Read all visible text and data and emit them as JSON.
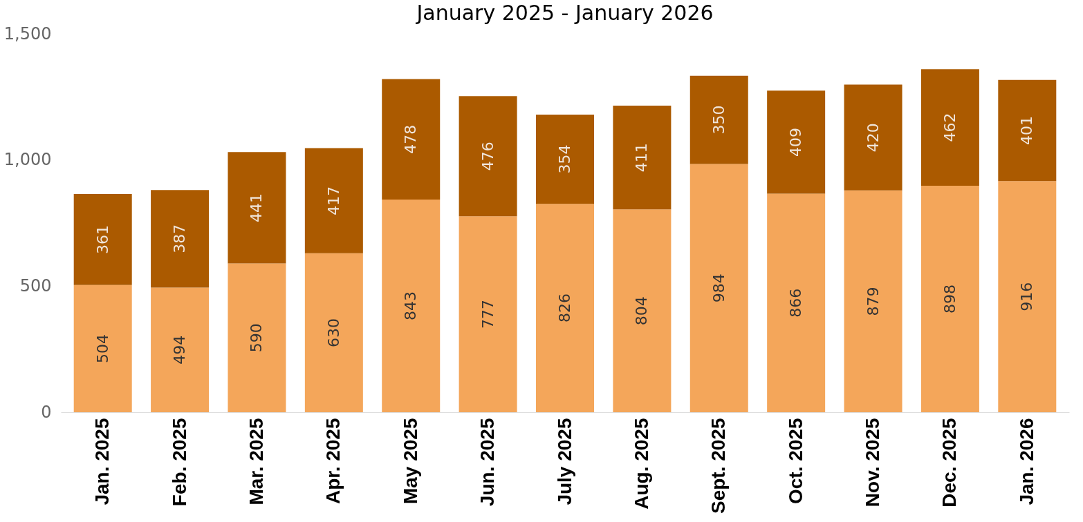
{
  "chart_data": {
    "type": "bar",
    "title": "January 2025 - January 2026",
    "categories": [
      "Jan. 2025",
      "Feb. 2025",
      "Mar. 2025",
      "Apr. 2025",
      "May 2025",
      "Jun. 2025",
      "July 2025",
      "Aug. 2025",
      "Sept. 2025",
      "Oct. 2025",
      "Nov. 2025",
      "Dec. 2025",
      "Jan. 2026"
    ],
    "stacked": true,
    "series": [
      {
        "color": "#f4a65a",
        "values": [
          504,
          494,
          590,
          630,
          843,
          777,
          826,
          804,
          984,
          866,
          879,
          898,
          916
        ]
      },
      {
        "color": "#ab5a00",
        "values": [
          361,
          387,
          441,
          417,
          478,
          476,
          354,
          411,
          350,
          409,
          420,
          462,
          401
        ]
      }
    ],
    "ylim": [
      0,
      1500
    ],
    "yticks": [
      0,
      500,
      {
        "value": 1000,
        "label": "1,000"
      },
      {
        "value": 1500,
        "label": "1,500"
      }
    ],
    "data_labels": true,
    "grid": false
  }
}
